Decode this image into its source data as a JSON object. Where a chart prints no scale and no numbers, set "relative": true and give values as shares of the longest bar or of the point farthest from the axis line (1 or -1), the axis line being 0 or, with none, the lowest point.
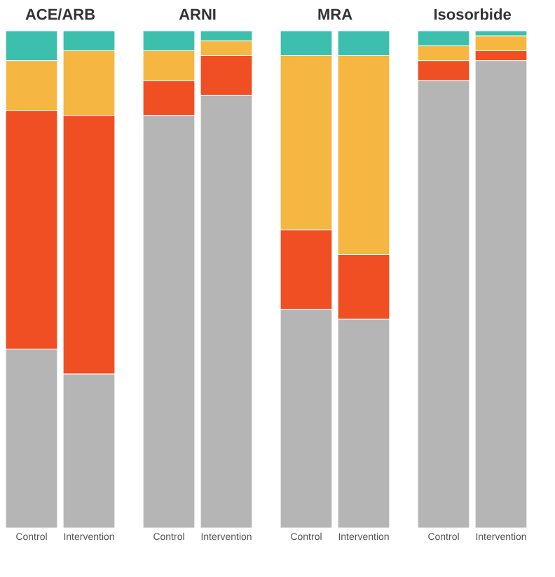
{
  "chart_data": [
    {
      "type": "bar",
      "title": "ACE/ARB",
      "stacked": true,
      "relative": true,
      "categories": [
        "Control",
        "Intervention"
      ],
      "series": [
        {
          "color": "#b5b5b5",
          "values": [
            0.36,
            0.31
          ]
        },
        {
          "color": "#f04e23",
          "values": [
            0.48,
            0.52
          ]
        },
        {
          "color": "#f5b642",
          "values": [
            0.1,
            0.13
          ]
        },
        {
          "color": "#3dbfad",
          "values": [
            0.06,
            0.04
          ]
        }
      ]
    },
    {
      "type": "bar",
      "title": "ARNI",
      "stacked": true,
      "relative": true,
      "categories": [
        "Control",
        "Intervention"
      ],
      "series": [
        {
          "color": "#b5b5b5",
          "values": [
            0.83,
            0.87
          ]
        },
        {
          "color": "#f04e23",
          "values": [
            0.07,
            0.08
          ]
        },
        {
          "color": "#f5b642",
          "values": [
            0.06,
            0.03
          ]
        },
        {
          "color": "#3dbfad",
          "values": [
            0.04,
            0.02
          ]
        }
      ]
    },
    {
      "type": "bar",
      "title": "MRA",
      "stacked": true,
      "relative": true,
      "categories": [
        "Control",
        "Intervention"
      ],
      "series": [
        {
          "color": "#b5b5b5",
          "values": [
            0.44,
            0.42
          ]
        },
        {
          "color": "#f04e23",
          "values": [
            0.16,
            0.13
          ]
        },
        {
          "color": "#f5b642",
          "values": [
            0.35,
            0.4
          ]
        },
        {
          "color": "#3dbfad",
          "values": [
            0.05,
            0.05
          ]
        }
      ]
    },
    {
      "type": "bar",
      "title": "Isosorbide",
      "stacked": true,
      "relative": true,
      "categories": [
        "Control",
        "Intervention"
      ],
      "series": [
        {
          "color": "#b5b5b5",
          "values": [
            0.9,
            0.94
          ]
        },
        {
          "color": "#f04e23",
          "values": [
            0.04,
            0.02
          ]
        },
        {
          "color": "#f5b642",
          "values": [
            0.03,
            0.03
          ]
        },
        {
          "color": "#3dbfad",
          "values": [
            0.03,
            0.01
          ]
        }
      ]
    }
  ]
}
